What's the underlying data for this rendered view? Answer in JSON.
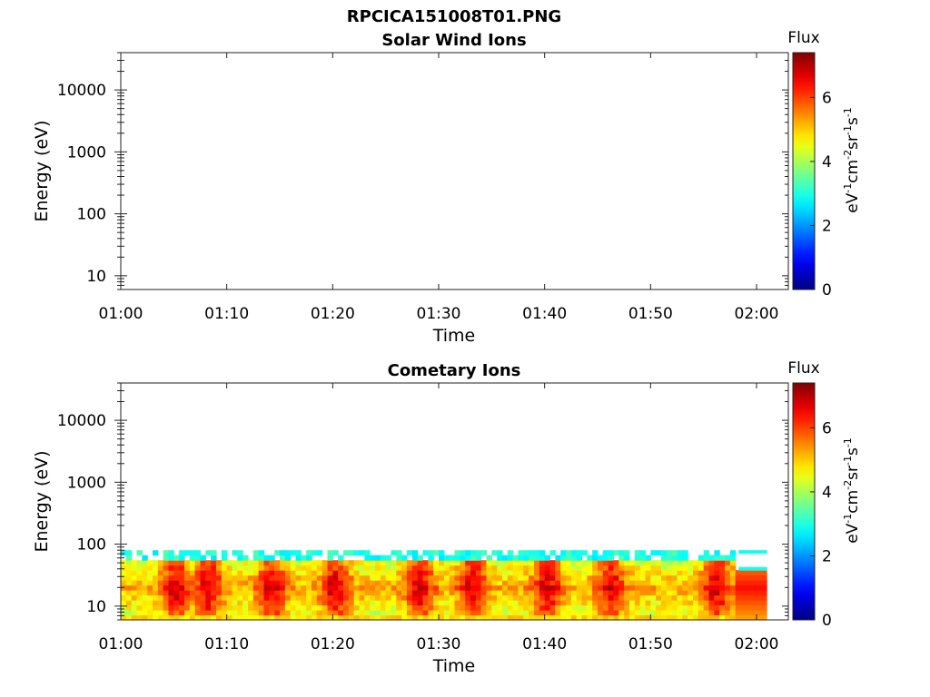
{
  "figure": {
    "title": "RPCICA151008T01.PNG"
  },
  "chart_data": [
    {
      "type": "heatmap",
      "title": "Solar Wind Ions",
      "xlabel": "Time",
      "ylabel": "Energy (eV)",
      "x_ticks": [
        "01:00",
        "01:10",
        "01:20",
        "01:30",
        "01:40",
        "01:50",
        "02:00"
      ],
      "x_range": [
        "01:00",
        "02:03"
      ],
      "y_scale": "log",
      "y_ticks": [
        "10",
        "100",
        "1000",
        "10000"
      ],
      "y_range": [
        6,
        40000
      ],
      "colorbar": {
        "label": "Flux",
        "unit": "eV-1cm-2sr-1s-1",
        "range": [
          0,
          7.4
        ],
        "ticks": [
          "0",
          "2",
          "4",
          "6"
        ],
        "colormap": "jet"
      },
      "data": []
    },
    {
      "type": "heatmap",
      "title": "Cometary Ions",
      "xlabel": "Time",
      "ylabel": "Energy (eV)",
      "x_ticks": [
        "01:00",
        "01:10",
        "01:20",
        "01:30",
        "01:40",
        "01:50",
        "02:00"
      ],
      "x_range": [
        "01:00",
        "02:03"
      ],
      "y_scale": "log",
      "y_ticks": [
        "10",
        "100",
        "1000",
        "10000"
      ],
      "y_range": [
        6,
        40000
      ],
      "colorbar": {
        "label": "Flux",
        "unit": "eV-1cm-2sr-1s-1",
        "range": [
          0,
          7.4
        ],
        "ticks": [
          "0",
          "2",
          "4",
          "6"
        ],
        "colormap": "jet"
      },
      "data": {
        "time_range": [
          "01:00",
          "02:01"
        ],
        "energy_range_eV": [
          6,
          80
        ],
        "peak_flux_times": [
          "01:05",
          "01:08",
          "01:14",
          "01:20",
          "01:28",
          "01:33",
          "01:40",
          "01:46",
          "01:56"
        ],
        "peak_flux_energy_eV": 20,
        "peak_flux_value": 7.2,
        "cyan_band_after": "01:58",
        "cyan_band_energies_eV": [
          75,
          40
        ]
      }
    }
  ]
}
